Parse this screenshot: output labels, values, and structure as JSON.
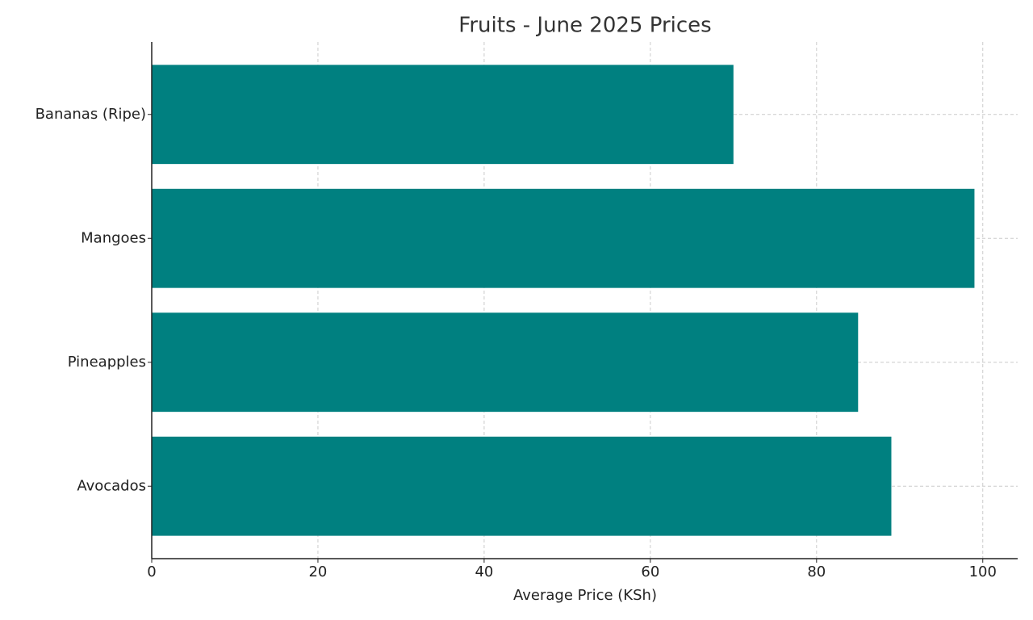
{
  "chart_data": {
    "type": "bar",
    "orientation": "horizontal",
    "title": "Fruits - June 2025 Prices",
    "x_label": "Average Price (KSh)",
    "categories": [
      "Bananas (Ripe)",
      "Mangoes",
      "Pineapples",
      "Avocados"
    ],
    "values": [
      70,
      99,
      85,
      89
    ],
    "color": "#008080",
    "xlim": [
      0,
      104.2
    ],
    "xticks": [
      0,
      20,
      40,
      60,
      80,
      100
    ],
    "grid": true
  }
}
